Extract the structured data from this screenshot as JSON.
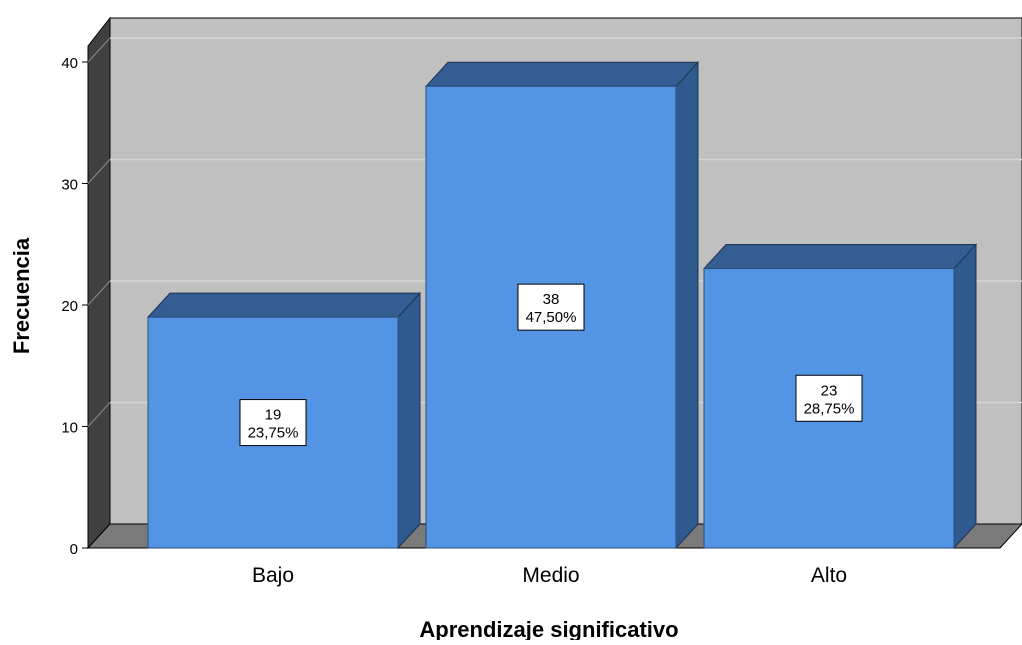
{
  "chart_data": {
    "type": "bar",
    "style": "3d",
    "categories": [
      "Bajo",
      "Medio",
      "Alto"
    ],
    "values": [
      19,
      38,
      23
    ],
    "percentages": [
      "23,75%",
      "47,50%",
      "28,75%"
    ],
    "xlabel": "Aprendizaje significativo",
    "ylabel": "Frecuencia",
    "ylim": [
      0,
      40
    ],
    "yticks": [
      0,
      10,
      20,
      30,
      40
    ],
    "grid": true,
    "colors": {
      "bar_front": "#5394E4",
      "bar_top": "#345E92",
      "bar_side": "#2F5A8E",
      "back_wall": "#C0C0C0",
      "left_wall": "#404040",
      "floor": "#7A7A7A",
      "gridline": "#D4D4D4"
    }
  }
}
